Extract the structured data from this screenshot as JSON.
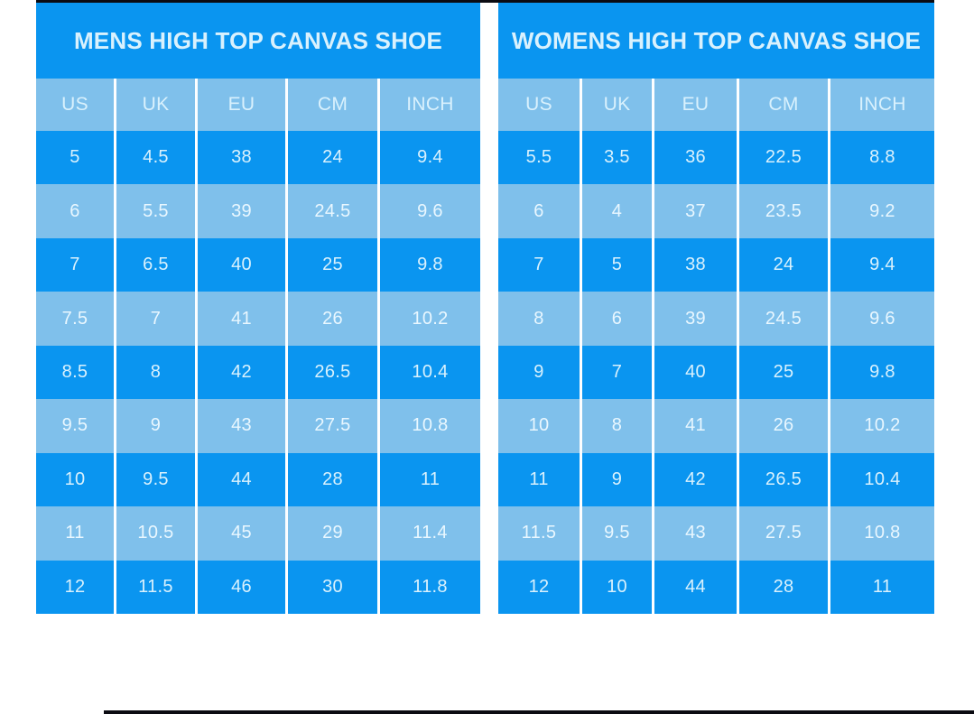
{
  "page": {
    "colors": {
      "background": "#ffffff",
      "primary_blue": "#0a95f0",
      "light_blue": "#7fc0eb",
      "text_light": "#d9f1fd",
      "text_on_light": "#e9f7ff",
      "separator_white": "#fdfeff",
      "edge_line_black": "#0b0b12"
    }
  },
  "chart_data": {
    "type": "table",
    "tables": [
      {
        "title": "MENS HIGH TOP CANVAS SHOE",
        "columns": [
          "US",
          "UK",
          "EU",
          "CM",
          "INCH"
        ],
        "rows": [
          [
            "5",
            "4.5",
            "38",
            "24",
            "9.4"
          ],
          [
            "6",
            "5.5",
            "39",
            "24.5",
            "9.6"
          ],
          [
            "7",
            "6.5",
            "40",
            "25",
            "9.8"
          ],
          [
            "7.5",
            "7",
            "41",
            "26",
            "10.2"
          ],
          [
            "8.5",
            "8",
            "42",
            "26.5",
            "10.4"
          ],
          [
            "9.5",
            "9",
            "43",
            "27.5",
            "10.8"
          ],
          [
            "10",
            "9.5",
            "44",
            "28",
            "11"
          ],
          [
            "11",
            "10.5",
            "45",
            "29",
            "11.4"
          ],
          [
            "12",
            "11.5",
            "46",
            "30",
            "11.8"
          ]
        ]
      },
      {
        "title": "WOMENS HIGH TOP CANVAS SHOE",
        "columns": [
          "US",
          "UK",
          "EU",
          "CM",
          "INCH"
        ],
        "rows": [
          [
            "5.5",
            "3.5",
            "36",
            "22.5",
            "8.8"
          ],
          [
            "6",
            "4",
            "37",
            "23.5",
            "9.2"
          ],
          [
            "7",
            "5",
            "38",
            "24",
            "9.4"
          ],
          [
            "8",
            "6",
            "39",
            "24.5",
            "9.6"
          ],
          [
            "9",
            "7",
            "40",
            "25",
            "9.8"
          ],
          [
            "10",
            "8",
            "41",
            "26",
            "10.2"
          ],
          [
            "11",
            "9",
            "42",
            "26.5",
            "10.4"
          ],
          [
            "11.5",
            "9.5",
            "43",
            "27.5",
            "10.8"
          ],
          [
            "12",
            "10",
            "44",
            "28",
            "11"
          ]
        ]
      }
    ]
  }
}
